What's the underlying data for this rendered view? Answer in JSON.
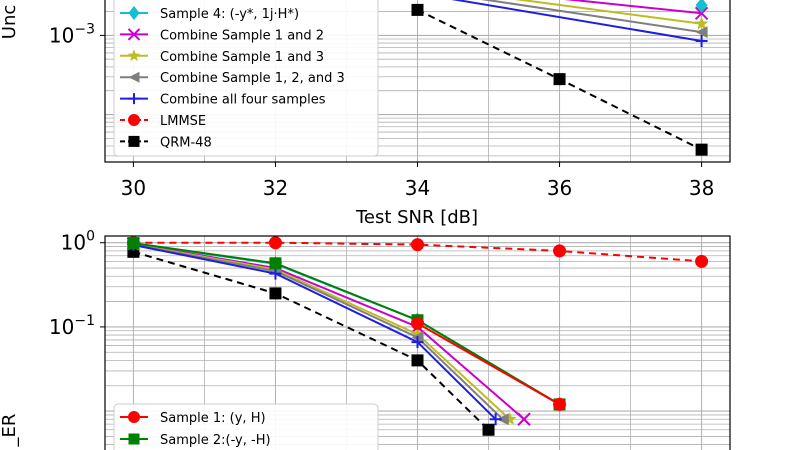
{
  "chart_data": [
    {
      "type": "line",
      "xlabel": "Test SNR [dB]",
      "ylabel_visible": "Unc",
      "yscale": "log",
      "xlim": [
        29.6,
        38.4
      ],
      "xticks": [
        "30",
        "32",
        "34",
        "36",
        "38"
      ],
      "ytick_labels": [
        {
          "base": "10",
          "exp": "−3"
        }
      ],
      "grid": true,
      "legend_position": "top-left",
      "legend": [
        {
          "name": "Sample 4: (-y*, 1j·H*)",
          "color": "#17becf",
          "marker": "diamond",
          "dash": "solid"
        },
        {
          "name": "Combine Sample 1 and 2",
          "color": "#cc00cc",
          "marker": "x",
          "dash": "solid"
        },
        {
          "name": "Combine Sample 1 and 3",
          "color": "#bcbd22",
          "marker": "star",
          "dash": "solid"
        },
        {
          "name": "Combine Sample 1, 2, and 3",
          "color": "#7f7f7f",
          "marker": "triangle-left",
          "dash": "solid"
        },
        {
          "name": "Combine all four samples",
          "color": "#1f1fdf",
          "marker": "plus",
          "dash": "solid"
        },
        {
          "name": "LMMSE",
          "color": "#ff0000",
          "marker": "circle",
          "dash": "dashed"
        },
        {
          "name": "QRM-48",
          "color": "#000000",
          "marker": "square",
          "dash": "dashed"
        }
      ],
      "series": [
        {
          "name": "QRM-48",
          "x": [
            34,
            36,
            38
          ],
          "y": [
            0.0021,
            0.00028,
            3.6e-05
          ]
        },
        {
          "name": "Combine Sample 1 and 2",
          "x": [
            34,
            38
          ],
          "y": [
            0.0045,
            0.0019
          ]
        },
        {
          "name": "Combine Sample 1 and 3",
          "x": [
            34,
            38
          ],
          "y": [
            0.0042,
            0.0014
          ]
        },
        {
          "name": "Combine Sample 1, 2, and 3",
          "x": [
            34,
            38
          ],
          "y": [
            0.0038,
            0.0011
          ]
        },
        {
          "name": "Combine all four samples",
          "x": [
            34,
            38
          ],
          "y": [
            0.0034,
            0.00085
          ]
        },
        {
          "name": "Sample 4: (-y*, 1j·H*)",
          "x": [
            38
          ],
          "y": [
            0.0024
          ]
        }
      ]
    },
    {
      "type": "line",
      "ylabel_visible": "_ER",
      "yscale": "log",
      "xlim": [
        29.6,
        38.4
      ],
      "ytick_labels": [
        {
          "base": "10",
          "exp": "0"
        },
        {
          "base": "10",
          "exp": "−1"
        }
      ],
      "grid": true,
      "legend_position": "bottom-left",
      "legend": [
        {
          "name": "Sample 1: (y, H)",
          "color": "#ff0000",
          "marker": "circle",
          "dash": "solid"
        },
        {
          "name": "Sample 2:(-y, -H)",
          "color": "#008000",
          "marker": "square",
          "dash": "solid"
        }
      ],
      "series": [
        {
          "name": "LMMSE",
          "x": [
            30,
            32,
            34,
            36,
            38
          ],
          "y": [
            1.0,
            1.0,
            0.95,
            0.8,
            0.6
          ]
        },
        {
          "name": "QRM-48",
          "x": [
            30,
            32,
            34,
            35
          ],
          "y": [
            0.78,
            0.25,
            0.04,
            0.006
          ]
        },
        {
          "name": "Sample 4: (-y*, 1j·H*)",
          "x": [
            30,
            32,
            34,
            36
          ],
          "y": [
            0.98,
            0.56,
            0.12,
            0.012
          ]
        },
        {
          "name": "Combine Sample 1 and 2",
          "x": [
            30,
            32,
            34,
            35.5
          ],
          "y": [
            0.97,
            0.5,
            0.1,
            0.008
          ]
        },
        {
          "name": "Combine Sample 1 and 3",
          "x": [
            30,
            32,
            34,
            35.3
          ],
          "y": [
            0.96,
            0.48,
            0.082,
            0.008
          ]
        },
        {
          "name": "Combine Sample 1, 2, and 3",
          "x": [
            30,
            32,
            34,
            35.2
          ],
          "y": [
            0.95,
            0.46,
            0.075,
            0.008
          ]
        },
        {
          "name": "Combine all four samples",
          "x": [
            30,
            32,
            34,
            35.1
          ],
          "y": [
            0.94,
            0.43,
            0.066,
            0.008
          ]
        },
        {
          "name": "Sample 2:(-y, -H)",
          "x": [
            30,
            32,
            34,
            36
          ],
          "y": [
            0.99,
            0.57,
            0.12,
            0.012
          ]
        },
        {
          "name": "Sample 1: (y, H)",
          "x": [
            34,
            36
          ],
          "y": [
            0.11,
            0.012
          ]
        }
      ]
    }
  ]
}
